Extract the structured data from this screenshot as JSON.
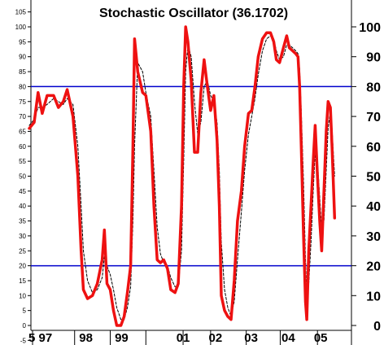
{
  "chart_data": {
    "type": "line",
    "title": "Stochastic Oscillator (36.1702)",
    "xlabel": "",
    "ylabel": "",
    "ylim": [
      -10,
      105
    ],
    "grid": false,
    "y_ticks_left": [
      "105",
      "100",
      "95",
      "90",
      "85",
      "80",
      "75",
      "70",
      "65",
      "60",
      "55",
      "50",
      "45",
      "40",
      "35",
      "30",
      "25",
      "20",
      "15",
      "10",
      "5",
      "0",
      "-5"
    ],
    "y_ticks_right": [
      "100",
      "90",
      "80",
      "70",
      "60",
      "50",
      "40",
      "30",
      "20",
      "10",
      "0"
    ],
    "x_tick_labels": [
      "5",
      "97",
      "98",
      "99",
      "01",
      "02",
      "03",
      "04",
      "05"
    ],
    "reference_lines": [
      80,
      20
    ],
    "colors": {
      "fast_line": "#ee1111",
      "slow_line": "#000000",
      "reference": "#0000cc"
    },
    "series": [
      {
        "values": [
          [
            1995.95,
            66
          ],
          [
            1996.1,
            68
          ],
          [
            1996.22,
            78
          ],
          [
            1996.35,
            71
          ],
          [
            1996.5,
            77
          ],
          [
            1996.7,
            77
          ],
          [
            1996.85,
            73
          ],
          [
            1997.0,
            75
          ],
          [
            1997.12,
            79
          ],
          [
            1997.3,
            70
          ],
          [
            1997.45,
            50
          ],
          [
            1997.55,
            25
          ],
          [
            1997.62,
            12
          ],
          [
            1997.75,
            9
          ],
          [
            1997.9,
            10
          ],
          [
            1998.05,
            14
          ],
          [
            1998.2,
            22
          ],
          [
            1998.27,
            32
          ],
          [
            1998.35,
            14
          ],
          [
            1998.45,
            12
          ],
          [
            1998.55,
            5
          ],
          [
            1998.65,
            0
          ],
          [
            1998.78,
            0
          ],
          [
            1998.88,
            3
          ],
          [
            1998.98,
            11
          ],
          [
            1999.08,
            20
          ],
          [
            1999.15,
            60
          ],
          [
            1999.2,
            96
          ],
          [
            1999.3,
            85
          ],
          [
            1999.45,
            78
          ],
          [
            1999.55,
            77
          ],
          [
            1999.7,
            65
          ],
          [
            1999.8,
            40
          ],
          [
            1999.9,
            22
          ],
          [
            2000.0,
            21
          ],
          [
            2000.1,
            22
          ],
          [
            2000.22,
            19
          ],
          [
            2000.32,
            12
          ],
          [
            2000.45,
            11
          ],
          [
            2000.55,
            14
          ],
          [
            2000.65,
            40
          ],
          [
            2000.72,
            80
          ],
          [
            2000.78,
            100
          ],
          [
            2000.85,
            95
          ],
          [
            2000.95,
            82
          ],
          [
            2001.05,
            58
          ],
          [
            2001.15,
            58
          ],
          [
            2001.25,
            78
          ],
          [
            2001.35,
            89
          ],
          [
            2001.45,
            80
          ],
          [
            2001.55,
            72
          ],
          [
            2001.65,
            77
          ],
          [
            2001.75,
            62
          ],
          [
            2001.82,
            40
          ],
          [
            2001.88,
            10
          ],
          [
            2001.98,
            5
          ],
          [
            2002.08,
            3
          ],
          [
            2002.18,
            2
          ],
          [
            2002.28,
            15
          ],
          [
            2002.38,
            35
          ],
          [
            2002.5,
            45
          ],
          [
            2002.6,
            60
          ],
          [
            2002.72,
            71
          ],
          [
            2002.82,
            72
          ],
          [
            2002.92,
            80
          ],
          [
            2003.02,
            90
          ],
          [
            2003.15,
            96
          ],
          [
            2003.28,
            98
          ],
          [
            2003.4,
            98
          ],
          [
            2003.5,
            95
          ],
          [
            2003.58,
            89
          ],
          [
            2003.68,
            88
          ],
          [
            2003.8,
            93
          ],
          [
            2003.9,
            97
          ],
          [
            2003.98,
            93
          ],
          [
            2004.08,
            92
          ],
          [
            2004.18,
            91
          ],
          [
            2004.25,
            90
          ],
          [
            2004.3,
            80
          ],
          [
            2004.35,
            60
          ],
          [
            2004.42,
            30
          ],
          [
            2004.48,
            8
          ],
          [
            2004.52,
            2
          ],
          [
            2004.58,
            25
          ],
          [
            2004.65,
            40
          ],
          [
            2004.72,
            55
          ],
          [
            2004.78,
            67
          ],
          [
            2004.85,
            50
          ],
          [
            2004.92,
            35
          ],
          [
            2004.98,
            25
          ],
          [
            2005.05,
            45
          ],
          [
            2005.12,
            65
          ],
          [
            2005.18,
            75
          ],
          [
            2005.25,
            73
          ],
          [
            2005.3,
            60
          ],
          [
            2005.38,
            36
          ]
        ]
      },
      {
        "values": [
          [
            1995.95,
            67
          ],
          [
            1996.1,
            69
          ],
          [
            1996.22,
            73
          ],
          [
            1996.35,
            73
          ],
          [
            1996.5,
            74
          ],
          [
            1996.7,
            76
          ],
          [
            1996.85,
            75
          ],
          [
            1997.0,
            74
          ],
          [
            1997.12,
            76
          ],
          [
            1997.3,
            74
          ],
          [
            1997.45,
            60
          ],
          [
            1997.55,
            40
          ],
          [
            1997.62,
            25
          ],
          [
            1997.75,
            15
          ],
          [
            1997.9,
            11
          ],
          [
            1998.05,
            12
          ],
          [
            1998.2,
            16
          ],
          [
            1998.27,
            23
          ],
          [
            1998.35,
            20
          ],
          [
            1998.45,
            17
          ],
          [
            1998.55,
            12
          ],
          [
            1998.65,
            6
          ],
          [
            1998.78,
            2
          ],
          [
            1998.88,
            2
          ],
          [
            1998.98,
            6
          ],
          [
            1999.08,
            13
          ],
          [
            1999.15,
            35
          ],
          [
            1999.2,
            60
          ],
          [
            1999.3,
            88
          ],
          [
            1999.45,
            85
          ],
          [
            1999.55,
            78
          ],
          [
            1999.7,
            70
          ],
          [
            1999.8,
            52
          ],
          [
            1999.9,
            33
          ],
          [
            2000.0,
            24
          ],
          [
            2000.1,
            21
          ],
          [
            2000.22,
            20
          ],
          [
            2000.32,
            16
          ],
          [
            2000.45,
            13
          ],
          [
            2000.55,
            13
          ],
          [
            2000.65,
            25
          ],
          [
            2000.72,
            55
          ],
          [
            2000.78,
            85
          ],
          [
            2000.85,
            94
          ],
          [
            2000.95,
            90
          ],
          [
            2001.05,
            75
          ],
          [
            2001.15,
            64
          ],
          [
            2001.25,
            68
          ],
          [
            2001.35,
            80
          ],
          [
            2001.45,
            82
          ],
          [
            2001.55,
            77
          ],
          [
            2001.65,
            75
          ],
          [
            2001.75,
            68
          ],
          [
            2001.82,
            52
          ],
          [
            2001.88,
            28
          ],
          [
            2001.98,
            12
          ],
          [
            2002.08,
            6
          ],
          [
            2002.18,
            3
          ],
          [
            2002.28,
            8
          ],
          [
            2002.38,
            22
          ],
          [
            2002.5,
            38
          ],
          [
            2002.6,
            52
          ],
          [
            2002.72,
            64
          ],
          [
            2002.82,
            70
          ],
          [
            2002.92,
            76
          ],
          [
            2003.02,
            84
          ],
          [
            2003.15,
            92
          ],
          [
            2003.28,
            96
          ],
          [
            2003.4,
            97
          ],
          [
            2003.5,
            96
          ],
          [
            2003.58,
            92
          ],
          [
            2003.68,
            89
          ],
          [
            2003.8,
            90
          ],
          [
            2003.9,
            94
          ],
          [
            2003.98,
            94
          ],
          [
            2004.08,
            93
          ],
          [
            2004.18,
            92
          ],
          [
            2004.25,
            91
          ],
          [
            2004.3,
            86
          ],
          [
            2004.35,
            72
          ],
          [
            2004.42,
            48
          ],
          [
            2004.48,
            22
          ],
          [
            2004.52,
            10
          ],
          [
            2004.58,
            14
          ],
          [
            2004.65,
            28
          ],
          [
            2004.72,
            45
          ],
          [
            2004.78,
            58
          ],
          [
            2004.85,
            55
          ],
          [
            2004.92,
            43
          ],
          [
            2004.98,
            32
          ],
          [
            2005.05,
            35
          ],
          [
            2005.12,
            52
          ],
          [
            2005.18,
            66
          ],
          [
            2005.25,
            72
          ],
          [
            2005.3,
            66
          ],
          [
            2005.38,
            50
          ]
        ]
      }
    ]
  }
}
